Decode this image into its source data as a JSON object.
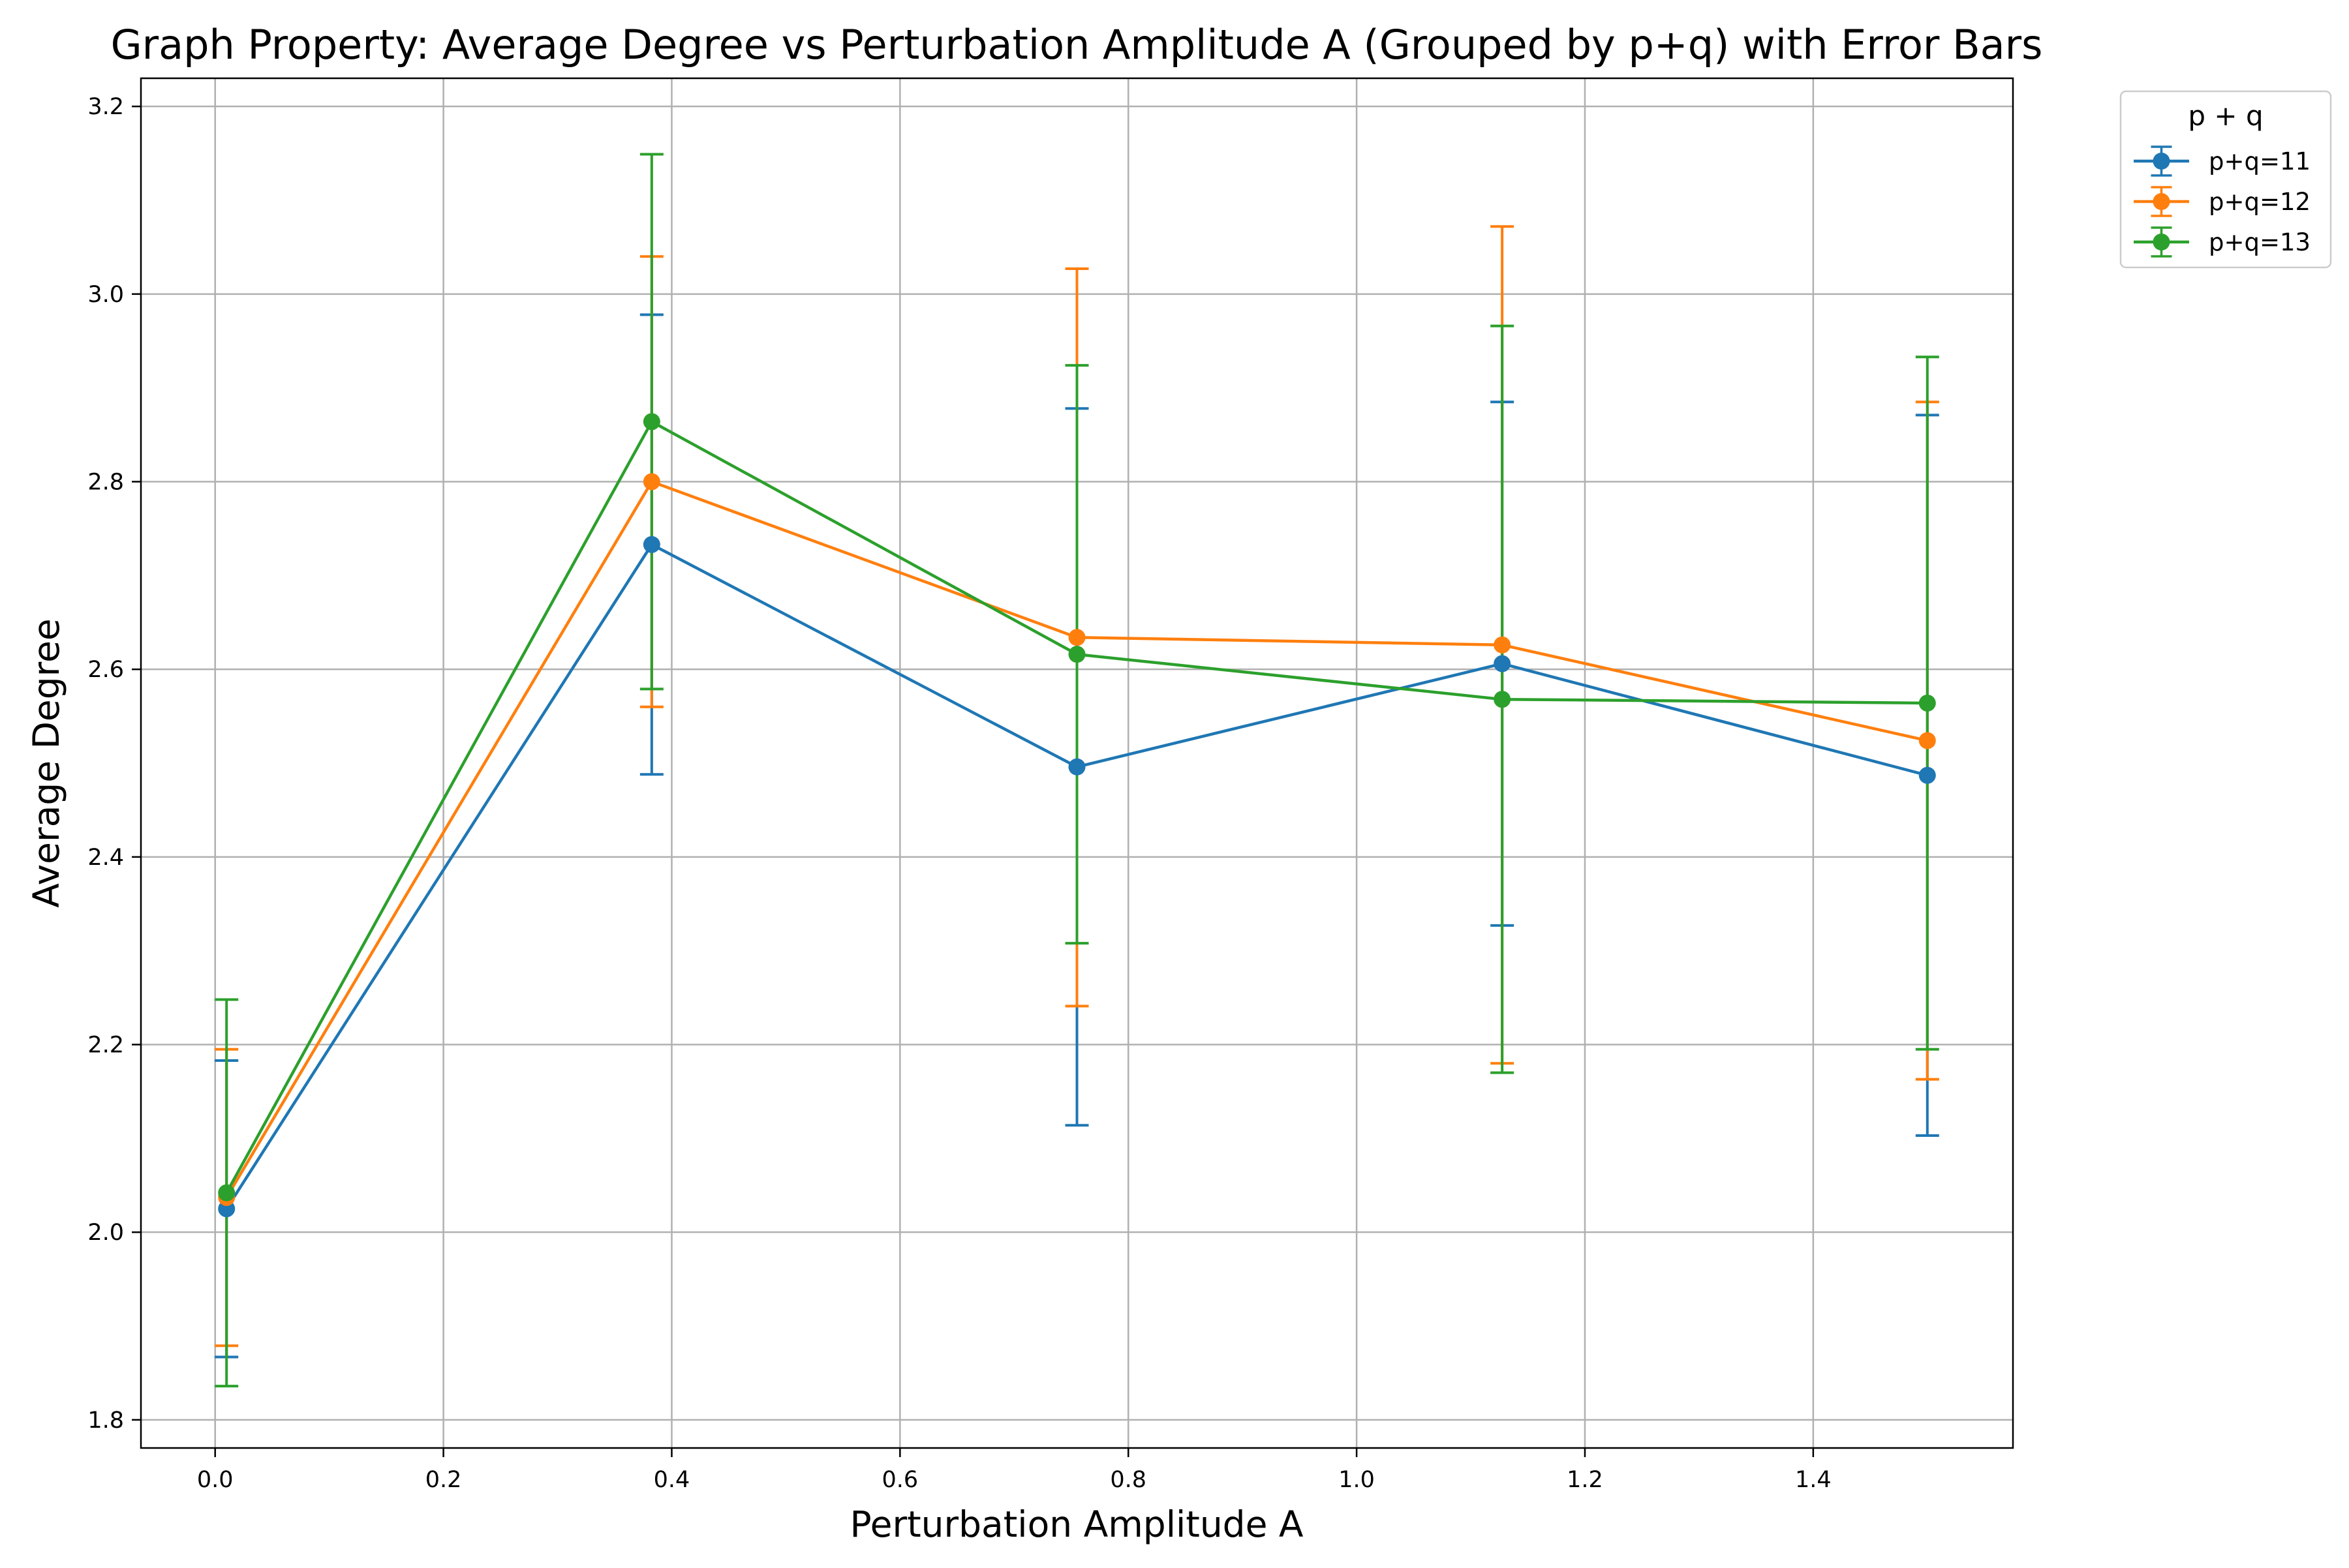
{
  "chart_data": {
    "type": "line",
    "title": "Graph Property: Average Degree vs Perturbation Amplitude A (Grouped by p+q) with Error Bars",
    "xlabel": "Perturbation Amplitude A",
    "ylabel": "Average Degree",
    "xlim": [
      -0.065,
      1.575
    ],
    "ylim": [
      1.77,
      3.23
    ],
    "xticks": [
      0.0,
      0.2,
      0.4,
      0.6,
      0.8,
      1.0,
      1.2,
      1.4
    ],
    "xtick_labels": [
      "0.0",
      "0.2",
      "0.4",
      "0.6",
      "0.8",
      "1.0",
      "1.2",
      "1.4"
    ],
    "yticks": [
      1.8,
      2.0,
      2.2,
      2.4,
      2.6,
      2.8,
      3.0,
      3.2
    ],
    "ytick_labels": [
      "1.8",
      "2.0",
      "2.2",
      "2.4",
      "2.6",
      "2.8",
      "3.0",
      "3.2"
    ],
    "grid": true,
    "legend": {
      "title": "p + q",
      "placement": "outside top-right"
    },
    "x": [
      0.01,
      0.3825,
      0.755,
      1.1275,
      1.5
    ],
    "series": [
      {
        "name": "p+q=11",
        "color": "#1f77b4",
        "values": [
          2.025,
          2.733,
          2.496,
          2.606,
          2.487
        ],
        "errors": [
          0.158,
          0.245,
          0.382,
          0.279,
          0.384
        ]
      },
      {
        "name": "p+q=12",
        "color": "#ff7f0e",
        "values": [
          2.037,
          2.8,
          2.634,
          2.626,
          2.524
        ],
        "errors": [
          0.158,
          0.24,
          0.393,
          0.446,
          0.361
        ]
      },
      {
        "name": "p+q=13",
        "color": "#2ca02c",
        "values": [
          2.042,
          2.864,
          2.616,
          2.568,
          2.564
        ],
        "errors": [
          0.206,
          0.285,
          0.308,
          0.398,
          0.369
        ]
      }
    ]
  }
}
